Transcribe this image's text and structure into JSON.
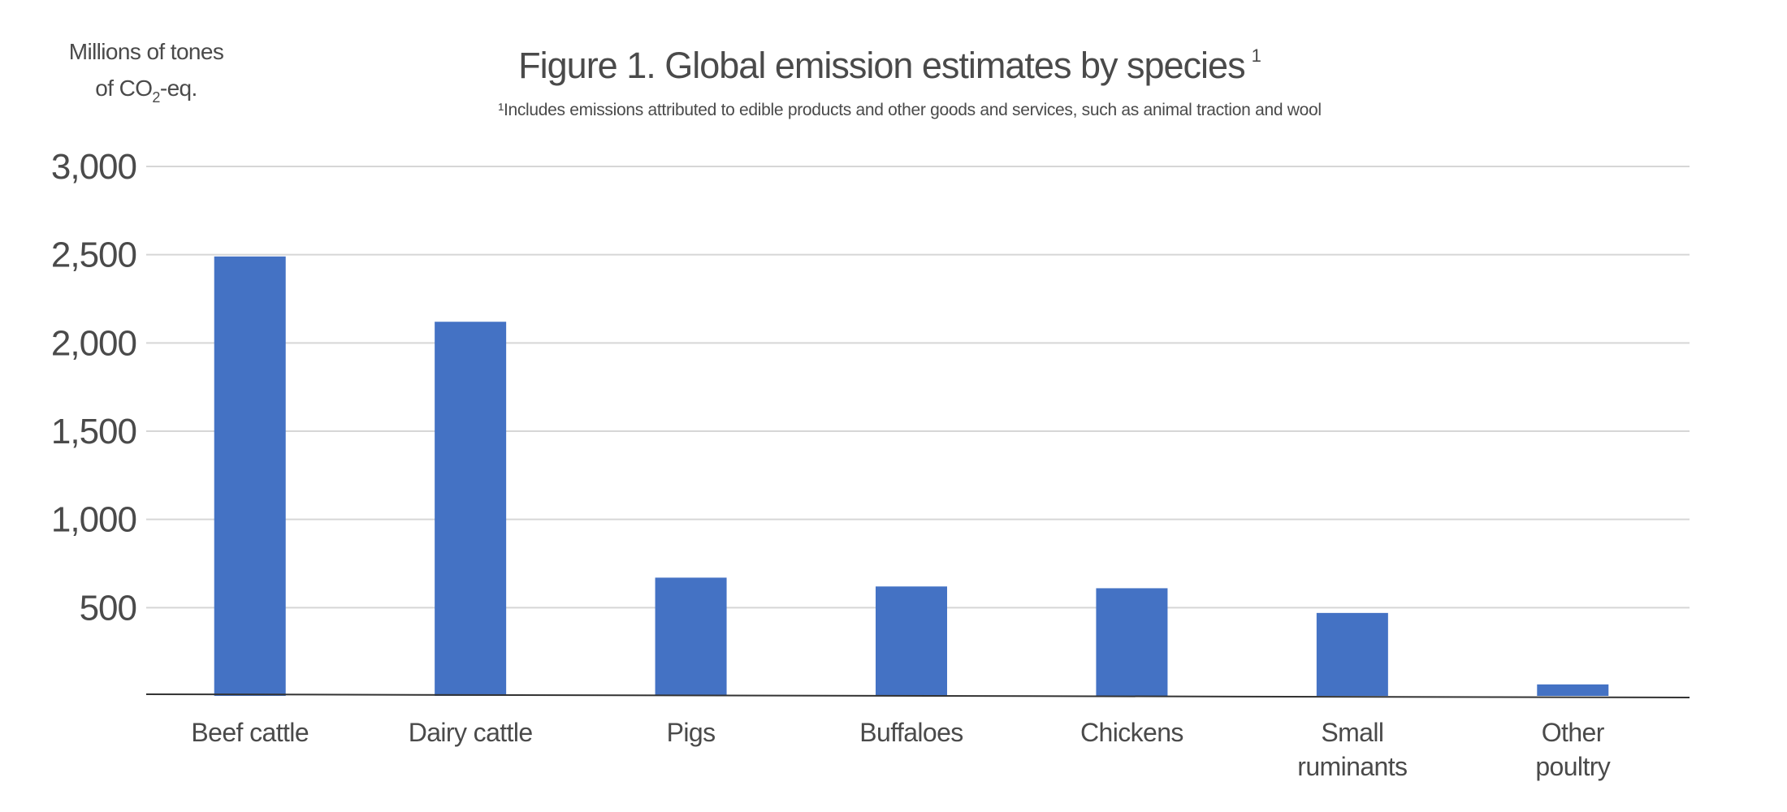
{
  "chart_data": {
    "type": "bar",
    "title": "Figure 1. Global emission estimates by species",
    "title_superscript": "1",
    "subtitle": "¹Includes emissions attributed to edible products and other goods and services, such as animal traction and wool",
    "ylabel": {
      "line1": "Millions of tones",
      "line2_prefix": "of CO",
      "line2_subscript": "2",
      "line2_suffix": "-eq."
    },
    "xlabel": "",
    "categories": [
      [
        "Beef cattle"
      ],
      [
        "Dairy cattle"
      ],
      [
        "Pigs"
      ],
      [
        "Buffaloes"
      ],
      [
        "Chickens"
      ],
      [
        "Small",
        "ruminants"
      ],
      [
        "Other",
        "poultry"
      ]
    ],
    "values": [
      2490,
      2120,
      670,
      620,
      610,
      470,
      65
    ],
    "ylim": [
      0,
      3000
    ],
    "yticks": [
      500,
      1000,
      1500,
      2000,
      2500,
      3000
    ],
    "ytick_labels": [
      "500",
      "1,000",
      "1,500",
      "2,000",
      "2,500",
      "3,000"
    ],
    "grid": true,
    "legend": "none",
    "bar_color": "#4472c4"
  }
}
